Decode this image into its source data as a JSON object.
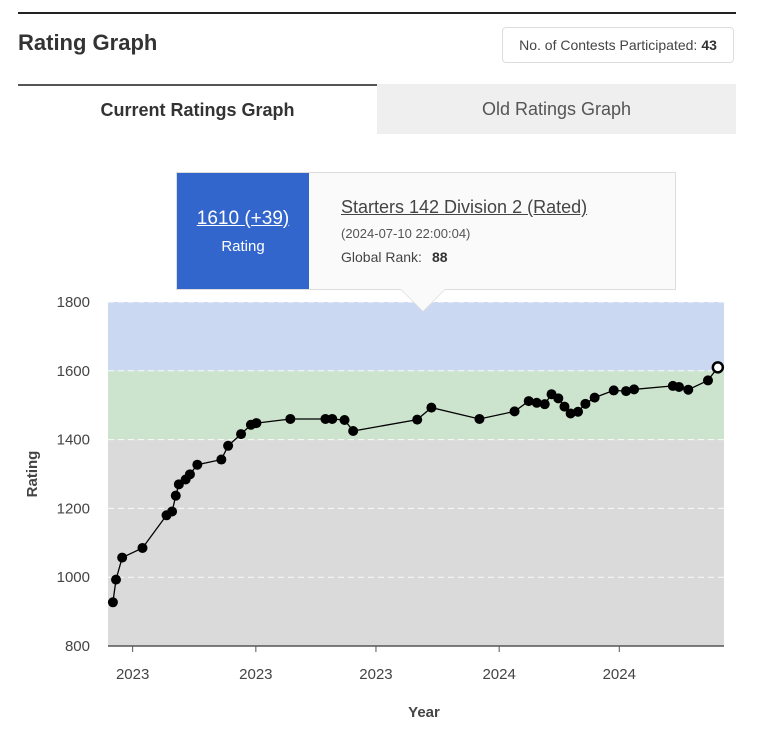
{
  "header": {
    "title": "Rating Graph",
    "contests_label": "No. of Contests Participated:",
    "contests_count": "43"
  },
  "tabs": [
    {
      "label": "Current Ratings Graph",
      "active": true
    },
    {
      "label": "Old Ratings Graph",
      "active": false
    }
  ],
  "tooltip": {
    "rating": "1610 (+39)",
    "rating_label": "Rating",
    "contest": "Starters 142 Division 2 (Rated)",
    "date": "(2024-07-10 22:00:04)",
    "rank_label": "Global Rank:",
    "rank_value": "88"
  },
  "colors": {
    "band_blue": "#cbd8f2",
    "band_green": "#cce3cd",
    "band_gray": "#dadada",
    "accent": "#3366cc",
    "line": "#000000"
  },
  "chart_data": {
    "type": "line",
    "xlabel": "Year",
    "ylabel": "Rating",
    "ylim": [
      800,
      1800
    ],
    "yticks": [
      800,
      1000,
      1200,
      1400,
      1600,
      1800
    ],
    "xticks": [
      {
        "t": 0.04,
        "label": "2023"
      },
      {
        "t": 0.24,
        "label": "2023"
      },
      {
        "t": 0.435,
        "label": "2023"
      },
      {
        "t": 0.635,
        "label": "2024"
      },
      {
        "t": 0.83,
        "label": "2024"
      }
    ],
    "bands": [
      {
        "from": 1600,
        "to": 1800,
        "color": "#cbd8f2"
      },
      {
        "from": 1400,
        "to": 1600,
        "color": "#cce3cd"
      },
      {
        "from": 800,
        "to": 1400,
        "color": "#dadada"
      }
    ],
    "grid": true,
    "points": [
      {
        "t": 0.008,
        "v": 927
      },
      {
        "t": 0.013,
        "v": 993
      },
      {
        "t": 0.023,
        "v": 1057
      },
      {
        "t": 0.056,
        "v": 1085
      },
      {
        "t": 0.095,
        "v": 1180
      },
      {
        "t": 0.104,
        "v": 1191
      },
      {
        "t": 0.11,
        "v": 1237
      },
      {
        "t": 0.115,
        "v": 1270
      },
      {
        "t": 0.126,
        "v": 1284
      },
      {
        "t": 0.133,
        "v": 1299
      },
      {
        "t": 0.145,
        "v": 1327
      },
      {
        "t": 0.184,
        "v": 1342
      },
      {
        "t": 0.195,
        "v": 1382
      },
      {
        "t": 0.216,
        "v": 1416
      },
      {
        "t": 0.232,
        "v": 1443
      },
      {
        "t": 0.241,
        "v": 1448
      },
      {
        "t": 0.296,
        "v": 1460
      },
      {
        "t": 0.353,
        "v": 1460
      },
      {
        "t": 0.364,
        "v": 1460
      },
      {
        "t": 0.384,
        "v": 1457
      },
      {
        "t": 0.398,
        "v": 1425
      },
      {
        "t": 0.502,
        "v": 1458
      },
      {
        "t": 0.525,
        "v": 1493
      },
      {
        "t": 0.603,
        "v": 1460
      },
      {
        "t": 0.66,
        "v": 1482
      },
      {
        "t": 0.683,
        "v": 1512
      },
      {
        "t": 0.696,
        "v": 1507
      },
      {
        "t": 0.709,
        "v": 1503
      },
      {
        "t": 0.72,
        "v": 1532
      },
      {
        "t": 0.731,
        "v": 1520
      },
      {
        "t": 0.741,
        "v": 1496
      },
      {
        "t": 0.751,
        "v": 1476
      },
      {
        "t": 0.763,
        "v": 1481
      },
      {
        "t": 0.775,
        "v": 1504
      },
      {
        "t": 0.79,
        "v": 1522
      },
      {
        "t": 0.821,
        "v": 1543
      },
      {
        "t": 0.841,
        "v": 1541
      },
      {
        "t": 0.854,
        "v": 1546
      },
      {
        "t": 0.917,
        "v": 1556
      },
      {
        "t": 0.927,
        "v": 1553
      },
      {
        "t": 0.942,
        "v": 1545
      },
      {
        "t": 0.974,
        "v": 1572
      },
      {
        "t": 0.99,
        "v": 1610,
        "highlight": true
      }
    ]
  }
}
